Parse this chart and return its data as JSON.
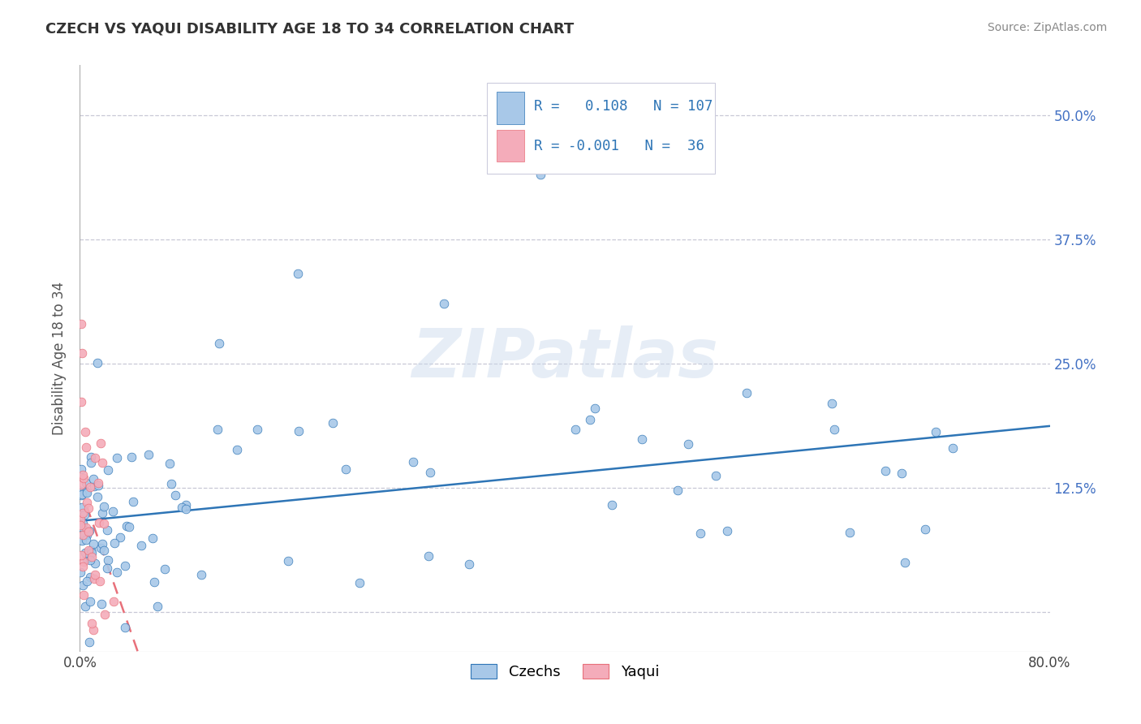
{
  "title": "CZECH VS YAQUI DISABILITY AGE 18 TO 34 CORRELATION CHART",
  "source": "Source: ZipAtlas.com",
  "ylabel": "Disability Age 18 to 34",
  "xlim": [
    0.0,
    0.8
  ],
  "ylim": [
    -0.04,
    0.55
  ],
  "ytick_positions": [
    0.0,
    0.125,
    0.25,
    0.375,
    0.5
  ],
  "ytick_labels_right": [
    "",
    "12.5%",
    "25.0%",
    "37.5%",
    "50.0%"
  ],
  "watermark_text": "ZIPatlas",
  "czech_color": "#A8C8E8",
  "yaqui_color": "#F4ACBA",
  "czech_line_color": "#2E75B6",
  "yaqui_line_color": "#E8707A",
  "R_czech": 0.108,
  "N_czech": 107,
  "R_yaqui": -0.001,
  "N_yaqui": 36,
  "legend_labels": [
    "Czechs",
    "Yaqui"
  ],
  "grid_color": "#BBBBCC",
  "title_color": "#333333",
  "source_color": "#888888",
  "ylabel_color": "#555555",
  "ytick_color": "#4472C4"
}
